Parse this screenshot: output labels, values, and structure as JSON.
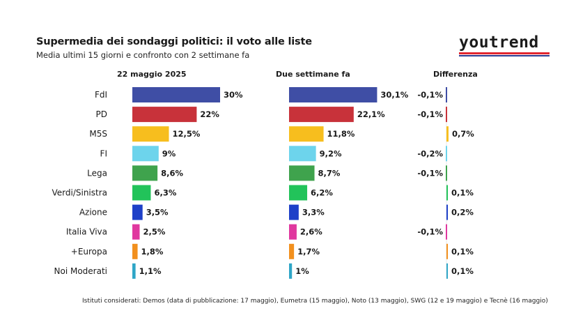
{
  "title": "Supermedia dei sondaggi politici: il voto alle liste",
  "subtitle": "Media ultimi 15 giorni e confronto con 2 settimane fa",
  "brand": "youtrend",
  "headers": {
    "current": "22 maggio 2025",
    "previous": "Due settimane fa",
    "difference": "Differenza"
  },
  "footnote": "Istituti considerati: Demos (data di pubblicazione: 17 maggio), Eumetra (15 maggio), Noto (13 maggio), SWG (12 e 19 maggio) e Tecnè (16 maggio)",
  "chart_data": {
    "type": "bar",
    "orientation": "horizontal",
    "categories": [
      "FdI",
      "PD",
      "M5S",
      "FI",
      "Lega",
      "Verdi/Sinistra",
      "Azione",
      "Italia Viva",
      "+Europa",
      "Noi Moderati"
    ],
    "series": [
      {
        "values": [
          30,
          22,
          12.5,
          9,
          8.6,
          6.3,
          3.5,
          2.5,
          1.8,
          1.1
        ],
        "labels": [
          "30%",
          "22%",
          "12,5%",
          "9%",
          "8,6%",
          "6,3%",
          "3,5%",
          "2,5%",
          "1,8%",
          "1,1%"
        ]
      },
      {
        "values": [
          30.1,
          22.1,
          11.8,
          9.2,
          8.7,
          6.2,
          3.3,
          2.6,
          1.7,
          1.0
        ],
        "labels": [
          "30,1%",
          "22,1%",
          "11,8%",
          "9,2%",
          "8,7%",
          "6,2%",
          "3,3%",
          "2,6%",
          "1,7%",
          "1%"
        ]
      },
      {
        "values": [
          -0.1,
          -0.1,
          0.7,
          -0.2,
          -0.1,
          0.1,
          0.2,
          -0.1,
          0.1,
          0.1
        ],
        "labels": [
          "-0,1%",
          "-0,1%",
          "0,7%",
          "-0,2%",
          "-0,1%",
          "0,1%",
          "0,2%",
          "-0,1%",
          "0,1%",
          "0,1%"
        ]
      }
    ],
    "colors": [
      "#3f4ea5",
      "#c8323a",
      "#f7be1e",
      "#6dd4ec",
      "#3fa34d",
      "#22c35a",
      "#1e40c8",
      "#e0389f",
      "#f2901e",
      "#2fa6c7"
    ],
    "grid": false,
    "legend": "none"
  }
}
